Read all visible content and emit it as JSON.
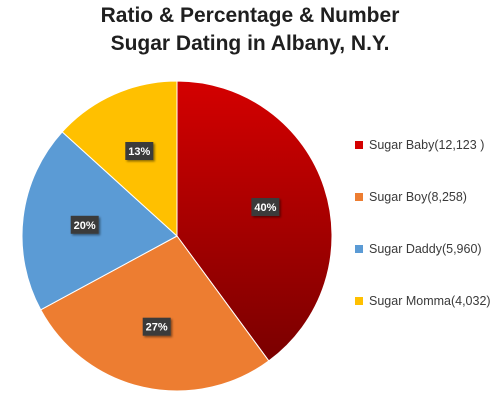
{
  "chart_data": {
    "type": "pie",
    "title_line1": "Ratio & Percentage & Number",
    "title_line2": "Sugar Dating in Albany, N.Y.",
    "slices": [
      {
        "label": "Sugar Baby(12,123 )",
        "value": 12123,
        "percent_label": "40%",
        "color": "#d40000",
        "color_dark": "#7a0000"
      },
      {
        "label": "Sugar Boy(8,258)",
        "value": 8258,
        "percent_label": "27%",
        "color": "#ed7d31"
      },
      {
        "label": "Sugar Daddy(5,960)",
        "value": 5960,
        "percent_label": "20%",
        "color": "#5b9bd5"
      },
      {
        "label": "Sugar Momma(4,032)",
        "value": 4032,
        "percent_label": "13%",
        "color": "#ffc000"
      }
    ],
    "legend_position": "right",
    "start_angle": "top",
    "direction": "clockwise"
  }
}
